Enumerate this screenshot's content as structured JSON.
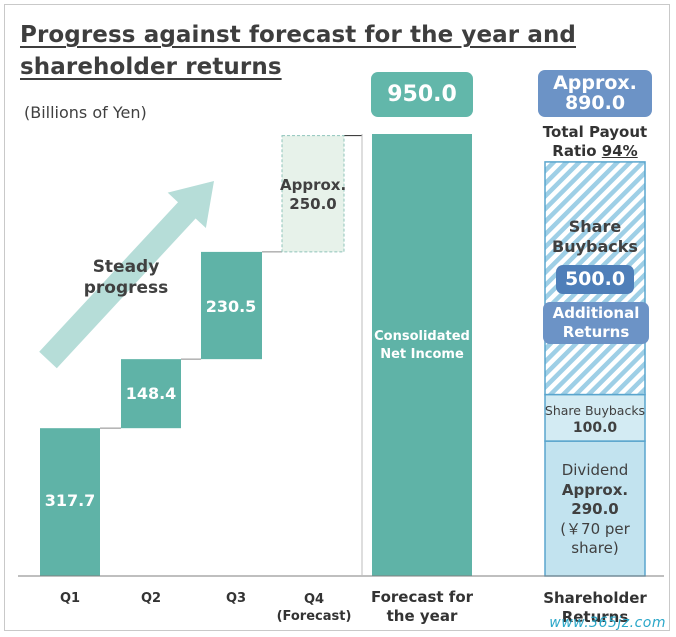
{
  "title": {
    "line1": "Progress against forecast for the year and",
    "line2": "shareholder returns"
  },
  "unit_label": "(Billions of Yen)",
  "arrow_label": {
    "line1": "Steady",
    "line2": "progress"
  },
  "colors": {
    "teal": "#5fb3a7",
    "teal_dashed_fill": "#e7f2ea",
    "header_teal": "#62b7aa",
    "blue": "#6c93c6",
    "blue_dark": "#4f7fb9",
    "light_blue": "#c2e3ef",
    "stripe": "#9ecfe6",
    "border_blue": "#5aa5cd",
    "arrow": "#b6ddd8"
  },
  "chart_data": {
    "type": "bar",
    "subtype": "waterfall",
    "ylim": [
      0,
      950
    ],
    "categories": [
      "Q1",
      "Q2",
      "Q3",
      "Q4\n(Forecast)",
      "Forecast for the year",
      "Shareholder Returns"
    ],
    "steps": [
      {
        "category": "Q1",
        "value": 317.7,
        "label": "317.7"
      },
      {
        "category": "Q2",
        "value": 148.4,
        "label": "148.4"
      },
      {
        "category": "Q3",
        "value": 230.5,
        "label": "230.5"
      },
      {
        "category": "Q4 (Forecast)",
        "value": 250.0,
        "label_line1": "Approx.",
        "label_line2": "250.0",
        "dashed": true
      }
    ],
    "forecast_total": {
      "value": 950.0,
      "header": "950.0",
      "bar_label_line1": "Consolidated",
      "bar_label_line2": "Net Income"
    },
    "shareholder_returns": {
      "total_value": 890.0,
      "header_line1": "Approx.",
      "header_line2": "890.0",
      "payout_line1": "Total Payout",
      "payout_line2_prefix": "Ratio ",
      "payout_ratio": "94%",
      "segments": [
        {
          "name": "Dividend",
          "value": 290.0,
          "line1": "Dividend",
          "line2": "Approx.",
          "line3": "290.0",
          "line4": "(￥70 per",
          "line5": "share)"
        },
        {
          "name": "Share Buybacks",
          "value": 100.0,
          "line1": "Share Buybacks",
          "line2": "100.0"
        },
        {
          "name": "Share Buybacks (Additional Returns)",
          "value": 500.0,
          "line1": "Share",
          "line2": "Buybacks",
          "value_label": "500.0",
          "tag_line1": "Additional",
          "tag_line2": "Returns"
        }
      ]
    },
    "xlabels": {
      "q1": "Q1",
      "q2": "Q2",
      "q3": "Q3",
      "q4_line1": "Q4",
      "q4_line2": "(Forecast)",
      "forecast_line1": "Forecast for",
      "forecast_line2": "the year",
      "returns_line1": "Shareholder",
      "returns_line2": "Returns"
    }
  },
  "watermark": "www.365jz.com"
}
